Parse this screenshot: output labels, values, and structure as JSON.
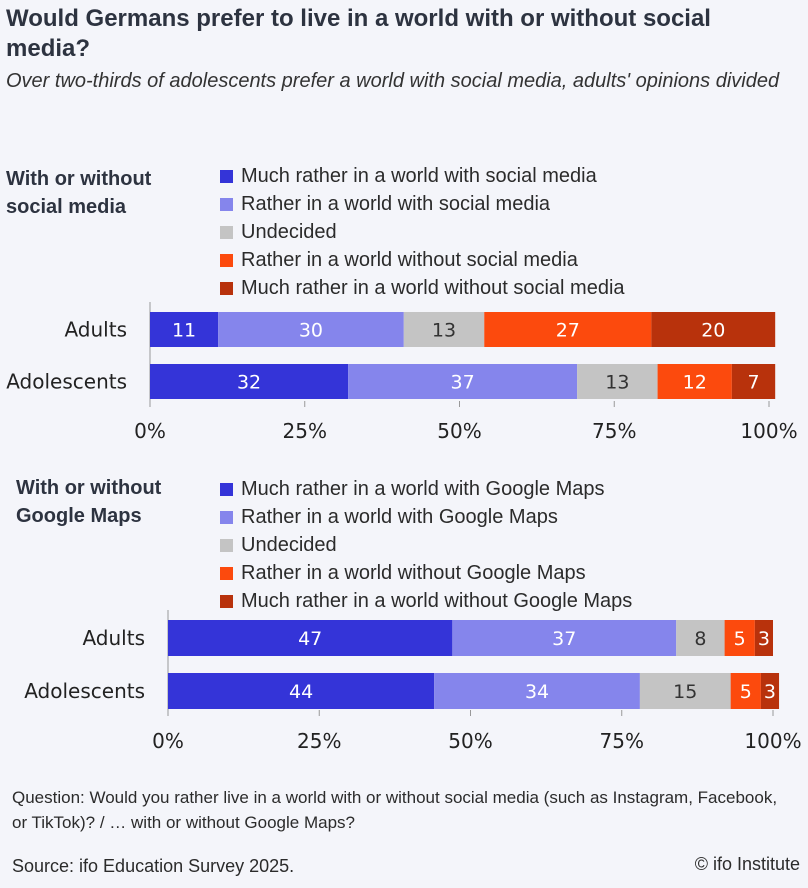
{
  "title": "Would Germans prefer to live in a world with or without social media?",
  "subtitle": "Over two-thirds of adolescents prefer a world with social media, adults' opinions divided",
  "colors": [
    "#3434d8",
    "#8585ec",
    "#c4c4c4",
    "#fc4a0d",
    "#b8320c"
  ],
  "chart_data": [
    {
      "type": "bar",
      "orientation": "horizontal",
      "stacked": true,
      "heading_lines": [
        "With or without",
        "social media"
      ],
      "categories": [
        "Adults",
        "Adolescents"
      ],
      "series": [
        {
          "name": "Much rather in a world with social media",
          "values": [
            11,
            32
          ]
        },
        {
          "name": "Rather in a world with social media",
          "values": [
            30,
            37
          ]
        },
        {
          "name": "Undecided",
          "values": [
            13,
            13
          ]
        },
        {
          "name": "Rather in a world without social media",
          "values": [
            27,
            12
          ]
        },
        {
          "name": "Much rather in a world without social media",
          "values": [
            20,
            7
          ]
        }
      ],
      "xlim": [
        0,
        100
      ],
      "ticks": [
        "0%",
        "25%",
        "50%",
        "75%",
        "100%"
      ],
      "legend_position": "top"
    },
    {
      "type": "bar",
      "orientation": "horizontal",
      "stacked": true,
      "heading_lines": [
        "With or without",
        "Google Maps"
      ],
      "categories": [
        "Adults",
        "Adolescents"
      ],
      "series": [
        {
          "name": "Much rather in a world with Google Maps",
          "values": [
            47,
            44
          ]
        },
        {
          "name": "Rather in a world with Google Maps",
          "values": [
            37,
            34
          ]
        },
        {
          "name": "Undecided",
          "values": [
            8,
            15
          ]
        },
        {
          "name": "Rather in a world without Google Maps",
          "values": [
            5,
            5
          ]
        },
        {
          "name": "Much rather in a world without Google Maps",
          "values": [
            3,
            3
          ]
        }
      ],
      "xlim": [
        0,
        100
      ],
      "ticks": [
        "0%",
        "25%",
        "50%",
        "75%",
        "100%"
      ],
      "legend_position": "top"
    }
  ],
  "question": "Question: Would you rather live in a world with or without social media (such as Instagram, Facebook, or TikTok)? / … with or without Google Maps?",
  "source": "Source: ifo Education Survey 2025.",
  "copyright": "© ifo Institute"
}
